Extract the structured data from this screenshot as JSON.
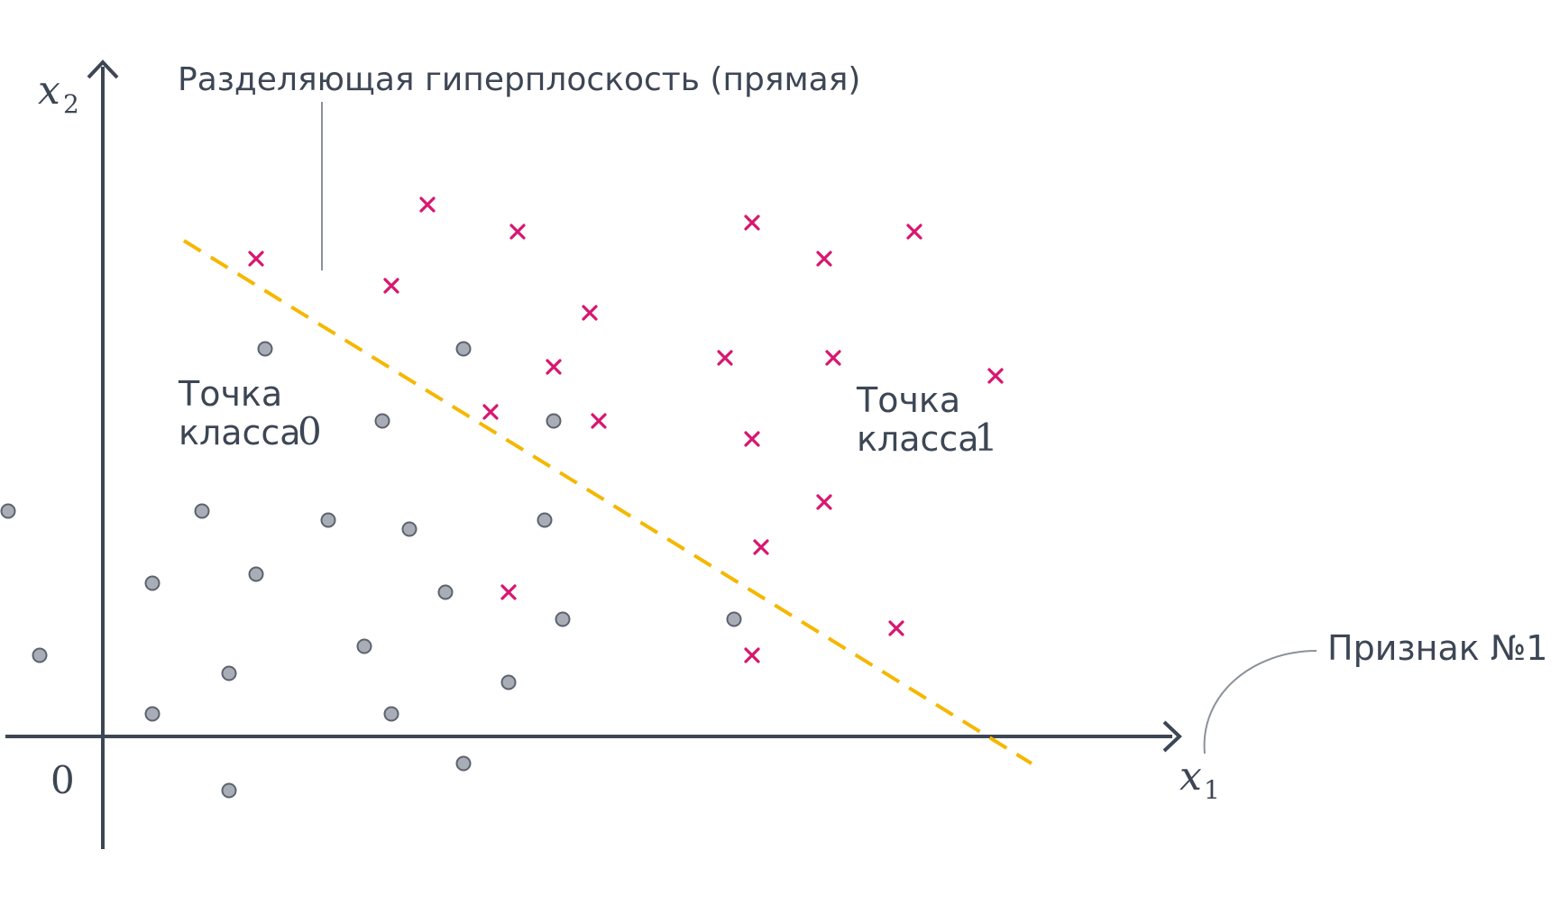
{
  "annotations": {
    "hyperplane": "Разделяющая гиперплоскость (прямая)",
    "class0_line1": "Точка",
    "class0_line2": "класса",
    "class0_value": "0",
    "class1_line1": "Точка",
    "class1_line2": "класса",
    "class1_value": "1",
    "feature1": "Признак №1"
  },
  "axes": {
    "origin": "0",
    "x_var": "x",
    "x_sub": "1",
    "y_var": "x",
    "y_sub": "2"
  },
  "colors": {
    "axis": "#3d4654",
    "class0": "#a9aeb6",
    "class0_stroke": "#5c6370",
    "class1": "#d8166f",
    "hyperplane": "#f5b700",
    "leader": "#8c9199"
  },
  "chart_data": {
    "type": "scatter",
    "title": "",
    "xlabel": "x1",
    "ylabel": "x2",
    "xlim": [
      -1.1,
      11.6
    ],
    "ylim": [
      -1.3,
      7.4
    ],
    "series": [
      {
        "name": "Точка класса 0",
        "marker": "circle",
        "points": [
          [
            1.8,
            4.3
          ],
          [
            4.0,
            4.3
          ],
          [
            3.1,
            3.5
          ],
          [
            5.0,
            3.5
          ],
          [
            -1.05,
            2.5
          ],
          [
            1.1,
            2.5
          ],
          [
            2.5,
            2.4
          ],
          [
            3.4,
            2.3
          ],
          [
            4.9,
            2.4
          ],
          [
            0.55,
            1.7
          ],
          [
            1.7,
            1.8
          ],
          [
            3.8,
            1.6
          ],
          [
            5.1,
            1.3
          ],
          [
            7.0,
            1.3
          ],
          [
            -0.7,
            0.9
          ],
          [
            2.9,
            1.0
          ],
          [
            1.4,
            0.7
          ],
          [
            4.5,
            0.6
          ],
          [
            0.55,
            0.25
          ],
          [
            3.2,
            0.25
          ],
          [
            4.0,
            -0.3
          ],
          [
            1.4,
            -0.6
          ]
        ]
      },
      {
        "name": "Точка класса 1",
        "marker": "x",
        "points": [
          [
            3.6,
            5.9
          ],
          [
            4.6,
            5.6
          ],
          [
            7.2,
            5.7
          ],
          [
            9.0,
            5.6
          ],
          [
            1.7,
            5.3
          ],
          [
            3.2,
            5.0
          ],
          [
            8.0,
            5.3
          ],
          [
            5.4,
            4.7
          ],
          [
            5.0,
            4.1
          ],
          [
            6.9,
            4.2
          ],
          [
            8.1,
            4.2
          ],
          [
            9.9,
            4.0
          ],
          [
            4.3,
            3.6
          ],
          [
            5.5,
            3.5
          ],
          [
            7.2,
            3.3
          ],
          [
            8.0,
            2.6
          ],
          [
            7.3,
            2.1
          ],
          [
            4.5,
            1.6
          ],
          [
            8.8,
            1.2
          ],
          [
            7.2,
            0.9
          ]
        ]
      }
    ],
    "decision_boundary": {
      "from": [
        0.9,
        5.5
      ],
      "to": [
        10.3,
        -0.3
      ]
    }
  }
}
